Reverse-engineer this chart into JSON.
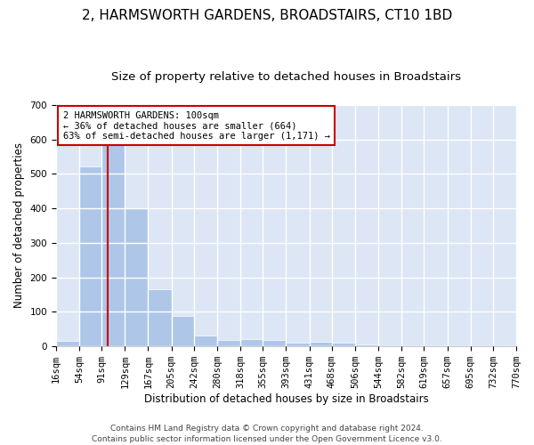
{
  "title": "2, HARMSWORTH GARDENS, BROADSTAIRS, CT10 1BD",
  "subtitle": "Size of property relative to detached houses in Broadstairs",
  "xlabel": "Distribution of detached houses by size in Broadstairs",
  "ylabel": "Number of detached properties",
  "bar_color": "#aec6e8",
  "background_color": "#dce6f5",
  "grid_color": "#ffffff",
  "bin_edges": [
    16,
    54,
    91,
    129,
    167,
    205,
    242,
    280,
    318,
    355,
    393,
    431,
    468,
    506,
    544,
    582,
    619,
    657,
    695,
    732,
    770
  ],
  "bar_heights": [
    15,
    521,
    585,
    401,
    165,
    88,
    31,
    19,
    22,
    19,
    10,
    13,
    11,
    5,
    0,
    0,
    0,
    0,
    0,
    0
  ],
  "property_size": 100,
  "annotation_text_line1": "2 HARMSWORTH GARDENS: 100sqm",
  "annotation_text_line2": "← 36% of detached houses are smaller (664)",
  "annotation_text_line3": "63% of semi-detached houses are larger (1,171) →",
  "annotation_box_color": "#ffffff",
  "annotation_box_edgecolor": "#cc0000",
  "vline_color": "#cc0000",
  "footer_line1": "Contains HM Land Registry data © Crown copyright and database right 2024.",
  "footer_line2": "Contains public sector information licensed under the Open Government Licence v3.0.",
  "ylim": [
    0,
    700
  ],
  "yticks": [
    0,
    100,
    200,
    300,
    400,
    500,
    600,
    700
  ],
  "title_fontsize": 11,
  "subtitle_fontsize": 9.5,
  "axis_label_fontsize": 8.5,
  "tick_fontsize": 7.5,
  "annotation_fontsize": 7.5,
  "footer_fontsize": 6.5
}
